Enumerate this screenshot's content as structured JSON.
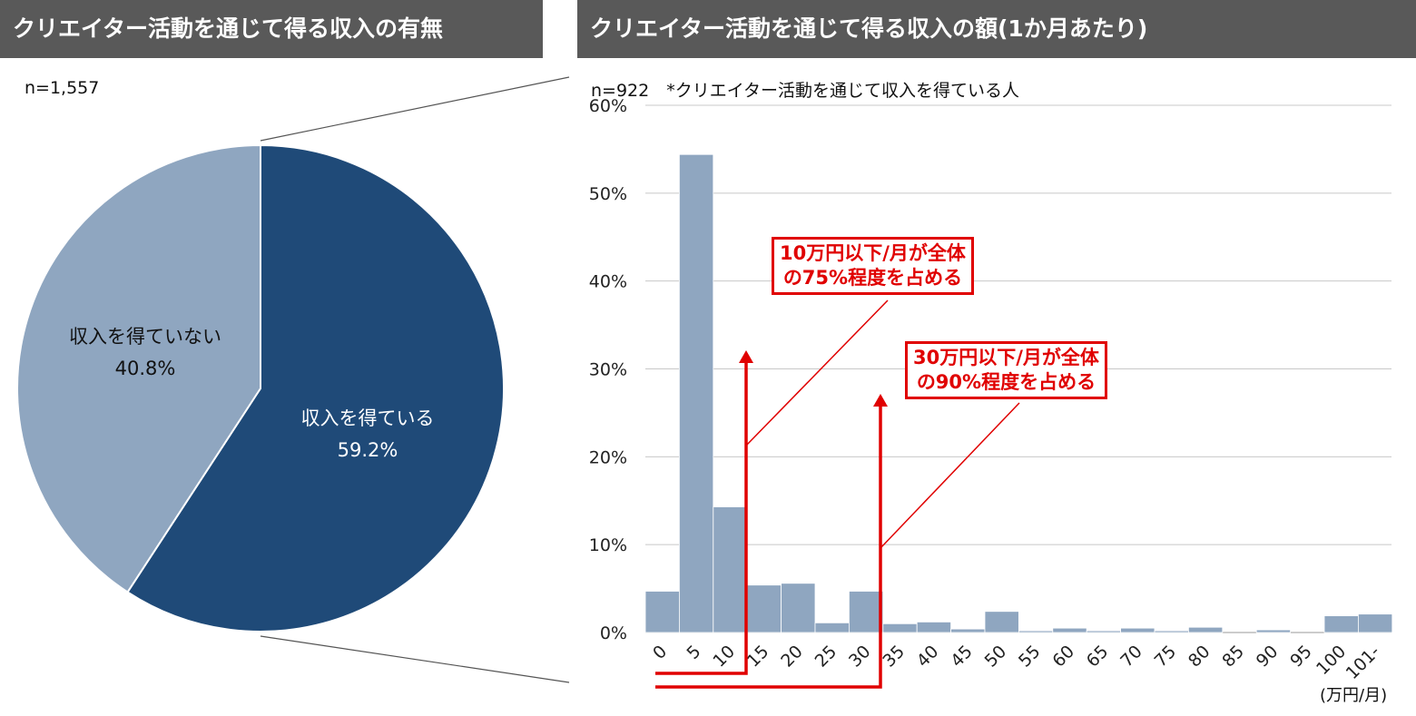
{
  "left": {
    "title": "クリエイター活動を通じて得る収入の有無",
    "sample": "n=1,557"
  },
  "right": {
    "title": "クリエイター活動を通じて得る収入の額(1か月あたり)",
    "sample": "n=922　*クリエイター活動を通じて収入を得ている人",
    "unit": "(万円/月)"
  },
  "callouts": {
    "c10_line1": "10万円以下/月が全体",
    "c10_line2": "の75%程度を占める",
    "c30_line1": "30万円以下/月が全体",
    "c30_line2": "の90%程度を占める"
  },
  "colors": {
    "dark": "#1f4a78",
    "light": "#8fa6c0",
    "accent": "#e00000",
    "header": "#595959"
  },
  "chart_data": [
    {
      "type": "pie",
      "slices": [
        {
          "label": "収入を得ている",
          "value": 59.2,
          "display": "59.2%",
          "color": "#1f4a78"
        },
        {
          "label": "収入を得ていない",
          "value": 40.8,
          "display": "40.8%",
          "color": "#8fa6c0"
        }
      ]
    },
    {
      "type": "bar",
      "categories": [
        "0",
        "5",
        "10",
        "15",
        "20",
        "25",
        "30",
        "35",
        "40",
        "45",
        "50",
        "55",
        "60",
        "65",
        "70",
        "75",
        "80",
        "85",
        "90",
        "95",
        "100",
        "101-"
      ],
      "values": [
        4.7,
        54.4,
        14.3,
        5.4,
        5.6,
        1.1,
        4.7,
        1.0,
        1.2,
        0.4,
        2.4,
        0.2,
        0.5,
        0.2,
        0.5,
        0.2,
        0.6,
        0.0,
        0.3,
        0.0,
        1.9,
        2.1
      ],
      "yticks": [
        "0%",
        "10%",
        "20%",
        "30%",
        "40%",
        "50%",
        "60%"
      ],
      "ylim": [
        0,
        60
      ],
      "grid": true,
      "color": "#8fa6c0"
    }
  ]
}
